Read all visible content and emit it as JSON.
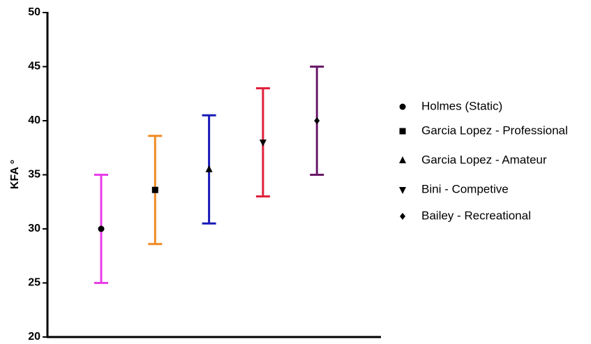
{
  "chart_data": {
    "type": "errorbar",
    "y_label": "KFA °",
    "categories": [
      null,
      null,
      null,
      null,
      null
    ],
    "ylim": [
      20,
      50
    ],
    "yticks": [
      20,
      25,
      30,
      35,
      40,
      45,
      50
    ],
    "series": [
      {
        "name": "Holmes (Static)",
        "color": "#e83ee8",
        "marker": "circle",
        "values": [
          30,
          null,
          null,
          null,
          null
        ],
        "errors": [
          5,
          null,
          null,
          null,
          null
        ]
      },
      {
        "name": "Garcia Lopez - Professional",
        "color": "#f08a24",
        "marker": "square",
        "values": [
          null,
          33.6,
          null,
          null,
          null
        ],
        "errors": [
          null,
          5,
          null,
          null,
          null
        ]
      },
      {
        "name": "Garcia Lopez - Amateur",
        "color": "#1a1ab8",
        "marker": "triangle-up",
        "values": [
          null,
          null,
          35.5,
          null,
          null
        ],
        "errors": [
          null,
          null,
          5,
          null,
          null
        ]
      },
      {
        "name": "Bini - Competive",
        "color": "#e0203a",
        "marker": "triangle-down",
        "values": [
          null,
          null,
          null,
          38,
          null
        ],
        "errors": [
          null,
          null,
          null,
          5,
          null
        ]
      },
      {
        "name": "Bailey - Recreational",
        "color": "#6a1a6a",
        "marker": "diamond",
        "values": [
          null,
          null,
          null,
          null,
          40
        ],
        "errors": [
          null,
          null,
          null,
          null,
          5
        ]
      }
    ]
  }
}
